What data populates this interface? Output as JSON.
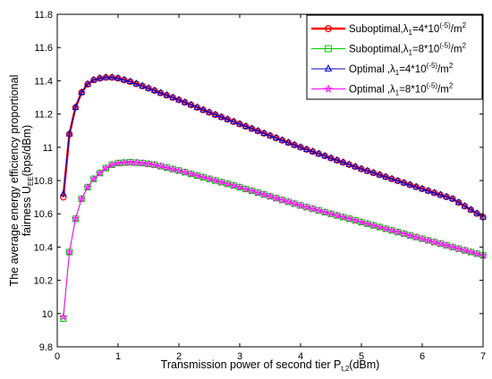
{
  "chart_data": {
    "type": "line",
    "xlabel": {
      "main": "Transmission power of second tier P",
      "sub": "t,2",
      "suffix": "(dBm)"
    },
    "ylabel": {
      "line1": "The average energy efficiency proportional",
      "line2_main": "fairness U",
      "line2_sub": "EE",
      "line2_suffix": "(bps/dBm)"
    },
    "xlim": [
      0,
      7
    ],
    "ylim": [
      9.8,
      11.8
    ],
    "xticks": [
      0,
      1,
      2,
      3,
      4,
      5,
      6,
      7
    ],
    "yticks": [
      9.8,
      10,
      10.2,
      10.4,
      10.6,
      10.8,
      11,
      11.2,
      11.4,
      11.6,
      11.8
    ],
    "grid": false,
    "legend_position": "top-right",
    "anchors": {
      "high": [
        [
          0.1,
          10.7
        ],
        [
          0.2,
          11.08
        ],
        [
          0.3,
          11.24
        ],
        [
          0.4,
          11.33
        ],
        [
          0.5,
          11.38
        ],
        [
          0.6,
          11.405
        ],
        [
          0.7,
          11.415
        ],
        [
          0.8,
          11.42
        ],
        [
          0.9,
          11.42
        ],
        [
          1.0,
          11.415
        ],
        [
          1.2,
          11.395
        ],
        [
          1.5,
          11.355
        ],
        [
          2.0,
          11.285
        ],
        [
          2.5,
          11.21
        ],
        [
          3.0,
          11.14
        ],
        [
          3.5,
          11.07
        ],
        [
          4.0,
          11.0
        ],
        [
          4.5,
          10.935
        ],
        [
          5.0,
          10.87
        ],
        [
          5.5,
          10.81
        ],
        [
          6.0,
          10.75
        ],
        [
          6.5,
          10.69
        ],
        [
          7.0,
          10.58
        ]
      ],
      "low": [
        [
          0.1,
          9.97
        ],
        [
          0.2,
          10.37
        ],
        [
          0.3,
          10.57
        ],
        [
          0.4,
          10.69
        ],
        [
          0.5,
          10.76
        ],
        [
          0.6,
          10.81
        ],
        [
          0.7,
          10.845
        ],
        [
          0.8,
          10.875
        ],
        [
          0.9,
          10.895
        ],
        [
          1.0,
          10.905
        ],
        [
          1.2,
          10.91
        ],
        [
          1.4,
          10.905
        ],
        [
          1.6,
          10.895
        ],
        [
          2.0,
          10.86
        ],
        [
          2.5,
          10.81
        ],
        [
          3.0,
          10.76
        ],
        [
          3.5,
          10.705
        ],
        [
          4.0,
          10.65
        ],
        [
          4.5,
          10.6
        ],
        [
          5.0,
          10.55
        ],
        [
          5.5,
          10.5
        ],
        [
          6.0,
          10.45
        ],
        [
          6.5,
          10.4
        ],
        [
          7.0,
          10.35
        ]
      ]
    },
    "series": [
      {
        "name": "Suboptimal,λ",
        "name_sub": "1",
        "name_mid": "=4*10",
        "name_sup": "(-5)",
        "name_end": "/m",
        "name_sup2": "2",
        "color": "#ff0000",
        "marker": "circle",
        "curve": "high",
        "first_point": [
          0.1,
          10.7
        ],
        "line_width": 2.5
      },
      {
        "name": "Suboptimal,λ",
        "name_sub": "1",
        "name_mid": "=8*10",
        "name_sup": "(-5)",
        "name_end": "/m",
        "name_sup2": "2",
        "color": "#00cc00",
        "marker": "square",
        "curve": "low",
        "first_point": [
          0.1,
          9.97
        ],
        "line_width": 1
      },
      {
        "name": "Optimal     ,λ",
        "name_sub": "1",
        "name_mid": "=4*10",
        "name_sup": "(-5)",
        "name_end": "/m",
        "name_sup2": "2",
        "color": "#0000cc",
        "marker": "triangle",
        "curve": "high",
        "first_point": [
          0.1,
          10.72
        ],
        "line_width": 1
      },
      {
        "name": "Optimal     ,λ",
        "name_sub": "1",
        "name_mid": "=8*10",
        "name_sup": "(-5)",
        "name_end": "/m",
        "name_sup2": "2",
        "color": "#ff00ff",
        "marker": "star",
        "curve": "low",
        "first_point": [
          0.1,
          9.98
        ],
        "line_width": 1
      }
    ]
  }
}
